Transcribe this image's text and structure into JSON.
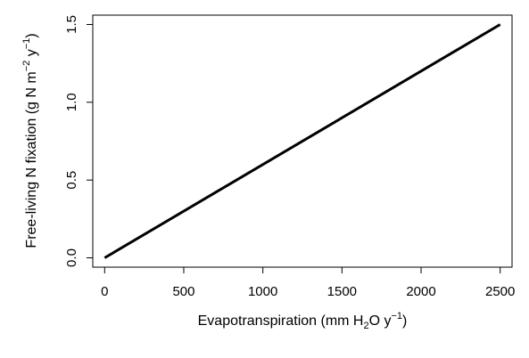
{
  "chart_data": {
    "type": "line",
    "x_ticks": [
      "0",
      "500",
      "1000",
      "1500",
      "2000",
      "2500"
    ],
    "y_ticks": [
      "0.0",
      "0.5",
      "1.0",
      "1.5"
    ],
    "xlim": [
      -75,
      2575
    ],
    "ylim": [
      -0.06,
      1.56
    ],
    "xlabel": {
      "t1": "Evapotranspiration (mm H",
      "sub": "2",
      "t2": "O y",
      "sup": "−1",
      "t3": ")"
    },
    "ylabel": {
      "t1": "Free-living N fixation (g N m",
      "sup1": "−2",
      "t2": " y",
      "sup2": "−1",
      "t3": ")"
    },
    "series": [
      {
        "x": [
          0,
          2500
        ],
        "y": [
          0.0,
          1.5
        ],
        "color": "#000000"
      }
    ]
  }
}
